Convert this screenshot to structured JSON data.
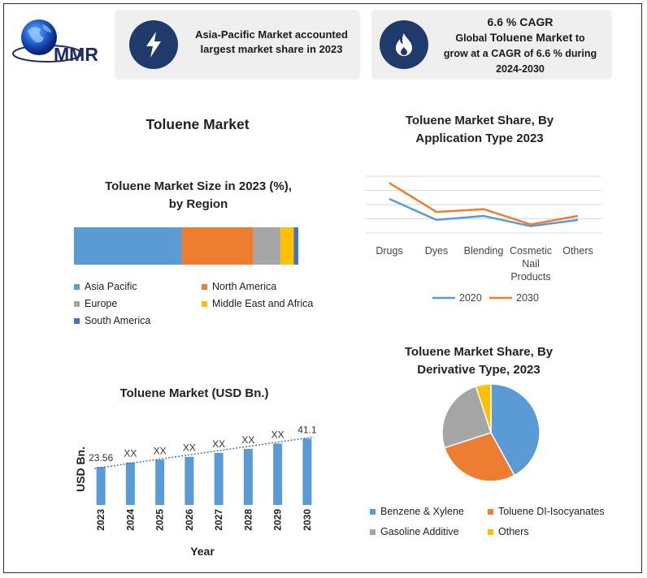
{
  "header": {
    "logo_text": "MMR",
    "card1_text_line1": "Asia-Pacific Market accounted",
    "card1_text_line2": "largest market share in 2023",
    "card2_cagr": "6.6 % CAGR",
    "card2_pre": "Global ",
    "card2_bold": "Toluene Market",
    "card2_post": " to",
    "card2_line3": "grow at a CAGR of 6.6 % during",
    "card2_line4": "2024-2030",
    "card1_icon": "lightning-icon",
    "card2_icon": "flame-icon"
  },
  "main_title": "Toluene Market",
  "colors": {
    "blue": "#5b9bd5",
    "orange": "#ed7d31",
    "gray": "#a5a5a5",
    "yellow": "#ffc000",
    "darkblue": "#4472c4",
    "navy": "#1f3a6b"
  },
  "chart_data": [
    {
      "type": "bar",
      "orientation": "horizontal-stacked",
      "title_line1": "Toluene Market Size in 2023 (%),",
      "title_line2": "by Region",
      "series": [
        {
          "name": "Asia Pacific",
          "value": 48
        },
        {
          "name": "North America",
          "value": 32
        },
        {
          "name": "Europe",
          "value": 12
        },
        {
          "name": "Middle East and Africa",
          "value": 6
        },
        {
          "name": "South America",
          "value": 2
        }
      ]
    },
    {
      "type": "line",
      "title_line1": "Toluene Market Share, By",
      "title_line2": "Application Type 2023",
      "categories": [
        "Drugs",
        "Dyes",
        "Blending",
        "Cosmetic Nail Products",
        "Others"
      ],
      "category_lines": [
        [
          "Drugs"
        ],
        [
          "Dyes"
        ],
        [
          "Blending"
        ],
        [
          "Cosmetic",
          "Nail",
          "Products"
        ],
        [
          "Others"
        ]
      ],
      "ylim": [
        0,
        100
      ],
      "grid": true,
      "series": [
        {
          "name": "2020",
          "values": [
            60,
            23,
            30,
            12,
            23
          ]
        },
        {
          "name": "2030",
          "values": [
            88,
            37,
            42,
            15,
            30
          ]
        }
      ],
      "legend_position": "bottom"
    },
    {
      "type": "bar",
      "title": "Toluene Market (USD Bn.)",
      "xlabel": "Year",
      "ylabel": "USD Bn.",
      "categories": [
        "2023",
        "2024",
        "2025",
        "2026",
        "2027",
        "2028",
        "2029",
        "2030"
      ],
      "values": [
        23.56,
        26.3,
        28.0,
        29.8,
        32.2,
        34.7,
        38.0,
        41.1
      ],
      "data_labels": [
        "23.56",
        "XX",
        "XX",
        "XX",
        "XX",
        "XX",
        "XX",
        "41.1"
      ],
      "trendline": true,
      "ylim": [
        0,
        50
      ]
    },
    {
      "type": "pie",
      "title_line1": "Toluene Market Share, By",
      "title_line2": "Derivative Type, 2023",
      "slices": [
        {
          "name": "Benzene & Xylene",
          "value": 42
        },
        {
          "name": "Toluene DI-Isocyanates",
          "value": 28
        },
        {
          "name": "Gasoline Additive",
          "value": 25
        },
        {
          "name": "Others",
          "value": 5
        }
      ]
    }
  ]
}
